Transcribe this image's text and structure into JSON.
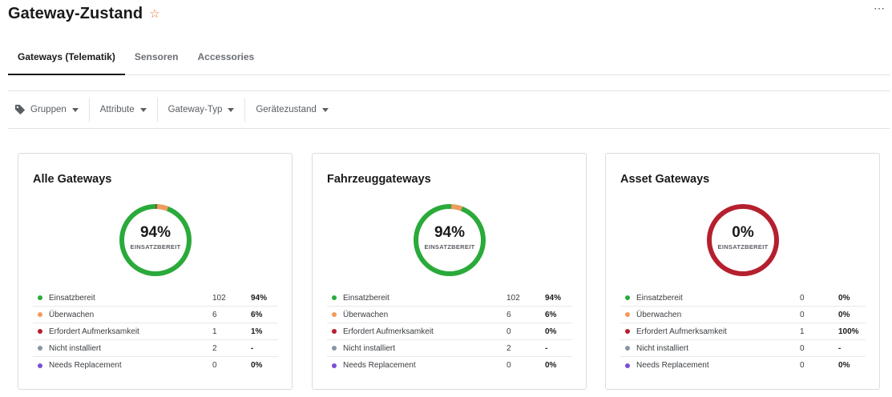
{
  "header": {
    "title": "Gateway-Zustand",
    "star_icon": "star-icon",
    "more_icon": "more-icon",
    "more_glyph": "⋯"
  },
  "tabs": [
    {
      "label": "Gateways (Telematik)",
      "active": true
    },
    {
      "label": "Sensoren",
      "active": false
    },
    {
      "label": "Accessories",
      "active": false
    }
  ],
  "filters": [
    {
      "label": "Gruppen",
      "icon": "tag-icon"
    },
    {
      "label": "Attribute"
    },
    {
      "label": "Gateway-Typ"
    },
    {
      "label": "Gerätezustand"
    }
  ],
  "colors": {
    "einsatzbereit": "#2aaa3a",
    "ueberwachen": "#f39a5e",
    "aufmerksamkeit": "#b5202e",
    "nicht_installiert": "#8a95a3",
    "replacement": "#7a4fd6",
    "star": "#e8772e"
  },
  "cards": [
    {
      "title": "Alle Gateways",
      "donut": {
        "percent": "94%",
        "label": "EINSATZBEREIT"
      },
      "rows": [
        {
          "label": "Einsatzbereit",
          "count": "102",
          "pct": "94%",
          "color": "#2aaa3a"
        },
        {
          "label": "Überwachen",
          "count": "6",
          "pct": "6%",
          "color": "#f39a5e"
        },
        {
          "label": "Erfordert Aufmerksamkeit",
          "count": "1",
          "pct": "1%",
          "color": "#b5202e"
        },
        {
          "label": "Nicht installiert",
          "count": "2",
          "pct": "-",
          "color": "#8a95a3"
        },
        {
          "label": "Needs Replacement",
          "count": "0",
          "pct": "0%",
          "color": "#7a4fd6"
        }
      ]
    },
    {
      "title": "Fahrzeuggateways",
      "donut": {
        "percent": "94%",
        "label": "EINSATZBEREIT"
      },
      "rows": [
        {
          "label": "Einsatzbereit",
          "count": "102",
          "pct": "94%",
          "color": "#2aaa3a"
        },
        {
          "label": "Überwachen",
          "count": "6",
          "pct": "6%",
          "color": "#f39a5e"
        },
        {
          "label": "Erfordert Aufmerksamkeit",
          "count": "0",
          "pct": "0%",
          "color": "#b5202e"
        },
        {
          "label": "Nicht installiert",
          "count": "2",
          "pct": "-",
          "color": "#8a95a3"
        },
        {
          "label": "Needs Replacement",
          "count": "0",
          "pct": "0%",
          "color": "#7a4fd6"
        }
      ]
    },
    {
      "title": "Asset Gateways",
      "donut": {
        "percent": "0%",
        "label": "EINSATZBEREIT"
      },
      "rows": [
        {
          "label": "Einsatzbereit",
          "count": "0",
          "pct": "0%",
          "color": "#2aaa3a"
        },
        {
          "label": "Überwachen",
          "count": "0",
          "pct": "0%",
          "color": "#f39a5e"
        },
        {
          "label": "Erfordert Aufmerksamkeit",
          "count": "1",
          "pct": "100%",
          "color": "#b5202e"
        },
        {
          "label": "Nicht installiert",
          "count": "0",
          "pct": "-",
          "color": "#8a95a3"
        },
        {
          "label": "Needs Replacement",
          "count": "0",
          "pct": "0%",
          "color": "#7a4fd6"
        }
      ]
    }
  ]
}
